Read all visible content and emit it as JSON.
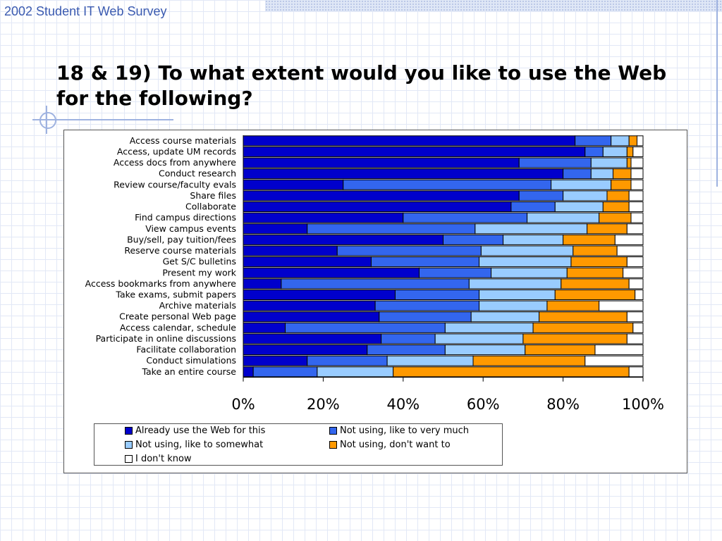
{
  "header": {
    "title": "2002 Student IT Web Survey"
  },
  "slide": {
    "title": "18 & 19) To what extent would you like to use the Web for the following?"
  },
  "colors": {
    "already_use": "#0000cc",
    "like_very_much": "#3366ee",
    "like_somewhat": "#99ccff",
    "dont_want": "#ff9900",
    "dont_know": "#ffffff"
  },
  "chart_data": {
    "type": "bar",
    "orientation": "horizontal",
    "stacked": "percent",
    "xlim": [
      0,
      100
    ],
    "xticks": [
      "0%",
      "20%",
      "40%",
      "60%",
      "80%",
      "100%"
    ],
    "legend_position": "bottom",
    "categories": [
      "Access course materials",
      "Access, update UM records",
      "Access docs from anywhere",
      "Conduct research",
      "Review course/faculty evals",
      "Share files",
      "Collaborate",
      "Find campus directions",
      "View campus events",
      "Buy/sell, pay tuition/fees",
      "Reserve course materials",
      "Get S/C bulletins",
      "Present my work",
      "Access bookmarks from anywhere",
      "Take exams, submit papers",
      "Archive materials",
      "Create personal Web page",
      "Access calendar, schedule",
      "Participate in online discussions",
      "Facilitate collaboration",
      "Conduct simulations",
      "Take an entire course"
    ],
    "series": [
      {
        "name": "Already use the Web for this",
        "color": "#0000cc",
        "values": [
          83,
          85.5,
          69,
          80,
          25,
          69,
          67,
          40,
          16,
          50,
          23.5,
          32,
          44,
          9.5,
          38,
          33,
          34,
          10.5,
          34.5,
          31,
          16,
          2.5
        ]
      },
      {
        "name": "Not using, like to very much",
        "color": "#3366ee",
        "values": [
          9,
          4.5,
          18,
          7,
          52,
          11,
          11,
          31,
          42,
          15,
          36,
          27,
          18,
          47,
          21,
          26,
          23,
          40,
          13.5,
          19.5,
          20,
          16
        ]
      },
      {
        "name": "Not using, like to somewhat",
        "color": "#99ccff",
        "values": [
          4.5,
          6,
          9,
          5.5,
          15,
          11,
          12,
          18,
          28,
          15,
          23,
          23,
          19,
          23,
          19,
          17,
          17,
          22,
          22,
          20,
          21.5,
          19
        ]
      },
      {
        "name": "Not using, don't want to",
        "color": "#ff9900",
        "values": [
          2,
          1.5,
          1,
          4.5,
          5,
          5.5,
          6.5,
          8,
          10,
          13,
          11,
          14,
          14,
          17,
          20,
          13,
          22,
          25,
          26,
          17.5,
          28,
          59
        ]
      },
      {
        "name": "I don't know",
        "color": "#ffffff",
        "values": [
          1.5,
          2.5,
          3,
          3,
          3,
          3.5,
          3.5,
          3,
          4,
          7,
          6.5,
          4,
          5,
          3.5,
          2,
          11,
          4,
          2.5,
          4,
          12,
          14.5,
          3.5
        ]
      }
    ]
  }
}
